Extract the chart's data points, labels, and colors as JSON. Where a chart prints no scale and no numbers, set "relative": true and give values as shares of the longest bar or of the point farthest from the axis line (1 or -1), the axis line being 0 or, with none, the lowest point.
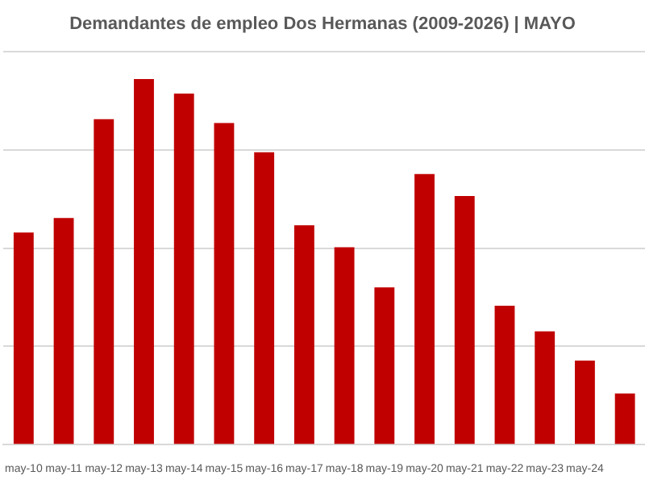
{
  "chart_data": {
    "type": "bar",
    "title": "Demandantes de empleo Dos Hermanas (2009-2026) | MAYO",
    "categories": [
      "may-10",
      "may-11",
      "may-12",
      "may-13",
      "may-14",
      "may-15",
      "may-16",
      "may-17",
      "may-18",
      "may-19",
      "may-20",
      "may-21",
      "may-22",
      "may-23",
      "may-24",
      null
    ],
    "values": [
      0.58,
      0.62,
      0.89,
      1,
      0.96,
      0.88,
      0.8,
      0.6,
      0.54,
      0.43,
      0.74,
      0.68,
      0.38,
      0.31,
      0.23,
      0.14
    ],
    "color": "#c00000",
    "relative": true,
    "grid": "y"
  }
}
